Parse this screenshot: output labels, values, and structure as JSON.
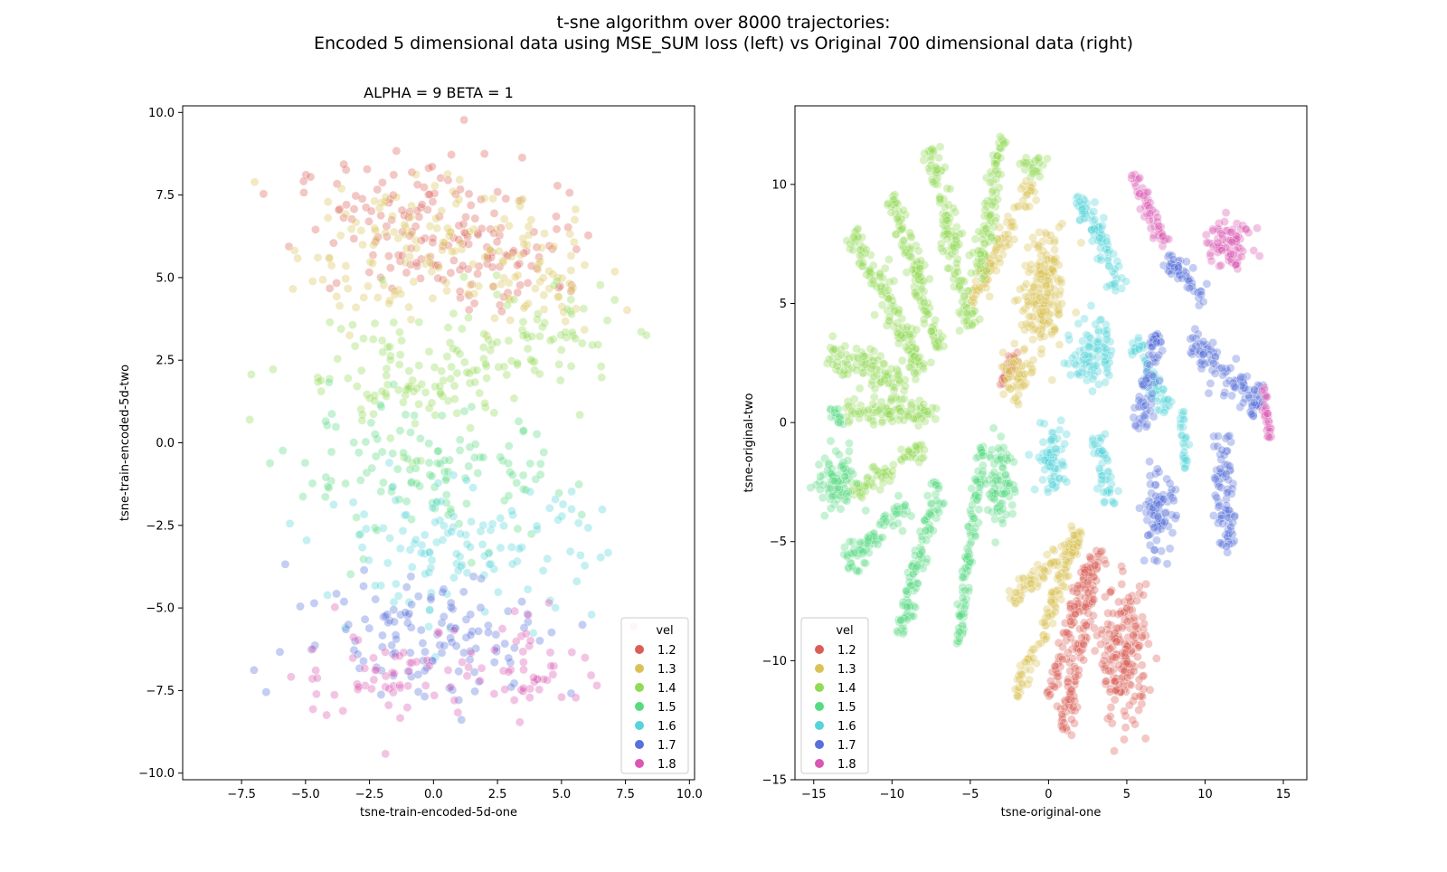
{
  "figure": {
    "title_line1": "t-sne algorithm over 8000 trajectories:",
    "title_line2": "Encoded 5 dimensional data using MSE_SUM loss (left) vs Original 700 dimensional data (right)"
  },
  "colors": {
    "1.2": "#db5f57",
    "1.3": "#dbc257",
    "1.4": "#91db57",
    "1.5": "#57db80",
    "1.6": "#57d3db",
    "1.7": "#5770db",
    "1.8": "#db57b2"
  },
  "chart_data": [
    {
      "type": "scatter",
      "title": "ALPHA = 9  BETA = 1",
      "xlabel": "tsne-train-encoded-5d-one",
      "ylabel": "tsne-train-encoded-5d-two",
      "xlim": [
        -9.8,
        10.2
      ],
      "ylim": [
        -10.2,
        10.2
      ],
      "xticks": [
        -7.5,
        -5.0,
        -2.5,
        0.0,
        2.5,
        5.0,
        7.5,
        10.0
      ],
      "xtick_labels": [
        "−7.5",
        "−5.0",
        "−2.5",
        "0.0",
        "2.5",
        "5.0",
        "7.5",
        "10.0"
      ],
      "yticks": [
        -10.0,
        -7.5,
        -5.0,
        -2.5,
        0.0,
        2.5,
        5.0,
        7.5,
        10.0
      ],
      "ytick_labels": [
        "−10.0",
        "−7.5",
        "−5.0",
        "−2.5",
        "0.0",
        "2.5",
        "5.0",
        "7.5",
        "10.0"
      ],
      "legend": {
        "title": "vel",
        "location": "lower right",
        "entries": [
          "1.2",
          "1.3",
          "1.4",
          "1.5",
          "1.6",
          "1.7",
          "1.8"
        ]
      },
      "series": [
        {
          "name": "1.2",
          "clusters": [
            {
              "center": [
                -1.0,
                6.5
              ],
              "spread": [
                4.0,
                2.0
              ]
            },
            {
              "center": [
                3.0,
                5.8
              ],
              "spread": [
                3.0,
                1.6
              ]
            }
          ]
        },
        {
          "name": "1.3",
          "clusters": [
            {
              "center": [
                -1.0,
                6.0
              ],
              "spread": [
                4.0,
                2.1
              ]
            },
            {
              "center": [
                4.0,
                5.0
              ],
              "spread": [
                2.5,
                1.6
              ]
            }
          ]
        },
        {
          "name": "1.4",
          "clusters": [
            {
              "center": [
                -1.0,
                2.0
              ],
              "spread": [
                4.5,
                1.8
              ]
            },
            {
              "center": [
                4.0,
                3.2
              ],
              "spread": [
                3.0,
                1.5
              ]
            }
          ]
        },
        {
          "name": "1.5",
          "clusters": [
            {
              "center": [
                0.0,
                -1.0
              ],
              "spread": [
                5.0,
                1.8
              ]
            }
          ]
        },
        {
          "name": "1.6",
          "clusters": [
            {
              "center": [
                1.0,
                -3.2
              ],
              "spread": [
                5.0,
                1.8
              ]
            }
          ]
        },
        {
          "name": "1.7",
          "clusters": [
            {
              "center": [
                0.0,
                -5.8
              ],
              "spread": [
                5.0,
                1.8
              ]
            }
          ]
        },
        {
          "name": "1.8",
          "clusters": [
            {
              "center": [
                -2.0,
                -7.0
              ],
              "spread": [
                3.0,
                1.3
              ]
            },
            {
              "center": [
                4.0,
                -6.8
              ],
              "spread": [
                2.8,
                1.3
              ]
            }
          ]
        }
      ]
    },
    {
      "type": "scatter",
      "title": "",
      "xlabel": "tsne-original-one",
      "ylabel": "tsne-original-two",
      "xlim": [
        -16.2,
        16.5
      ],
      "ylim": [
        -15.0,
        13.3
      ],
      "xticks": [
        -15,
        -10,
        -5,
        0,
        5,
        10,
        15
      ],
      "xtick_labels": [
        "−15",
        "−10",
        "−5",
        "0",
        "5",
        "10",
        "15"
      ],
      "yticks": [
        -15,
        -10,
        -5,
        0,
        5,
        10
      ],
      "ytick_labels": [
        "−15",
        "−10",
        "−5",
        "0",
        "5",
        "10"
      ],
      "legend": {
        "title": "vel",
        "location": "lower left",
        "entries": [
          "1.2",
          "1.3",
          "1.4",
          "1.5",
          "1.6",
          "1.7",
          "1.8"
        ]
      },
      "series": [
        {
          "name": "1.2",
          "clusters": [
            {
              "type": "blob",
              "center": [
                4.8,
                -9.8
              ],
              "spread": [
                1.4,
                2.6
              ]
            },
            {
              "type": "arc",
              "from": [
                1.0,
                -13.0
              ],
              "to": [
                3.2,
                -5.2
              ],
              "width": 0.5
            },
            {
              "type": "arc",
              "from": [
                0.0,
                -11.5
              ],
              "to": [
                2.5,
                -6.0
              ],
              "width": 0.4
            },
            {
              "type": "arc",
              "from": [
                -2.0,
                3.0
              ],
              "to": [
                -3.0,
                1.5
              ],
              "width": 0.3
            }
          ]
        },
        {
          "name": "1.3",
          "clusters": [
            {
              "type": "arc",
              "from": [
                -2.0,
                -11.5
              ],
              "to": [
                2.0,
                -4.5
              ],
              "width": 0.4
            },
            {
              "type": "arc",
              "from": [
                -2.5,
                -7.5
              ],
              "to": [
                2.0,
                -4.8
              ],
              "width": 0.4
            },
            {
              "type": "blob",
              "center": [
                -0.5,
                4.5
              ],
              "spread": [
                1.2,
                1.6
              ]
            },
            {
              "type": "blob",
              "center": [
                0.0,
                6.5
              ],
              "spread": [
                1.0,
                1.5
              ]
            },
            {
              "type": "blob",
              "center": [
                -2.0,
                2.0
              ],
              "spread": [
                1.0,
                1.0
              ]
            },
            {
              "type": "arc",
              "from": [
                -5.0,
                5.0
              ],
              "to": [
                -1.0,
                10.0
              ],
              "width": 0.5
            }
          ]
        },
        {
          "name": "1.4",
          "clusters": [
            {
              "type": "arc",
              "from": [
                -14.0,
                3.0
              ],
              "to": [
                -9.0,
                1.5
              ],
              "width": 0.8
            },
            {
              "type": "arc",
              "from": [
                -12.5,
                8.0
              ],
              "to": [
                -8.0,
                2.0
              ],
              "width": 0.7
            },
            {
              "type": "arc",
              "from": [
                -10.0,
                9.5
              ],
              "to": [
                -7.0,
                3.0
              ],
              "width": 0.6
            },
            {
              "type": "arc",
              "from": [
                -7.5,
                11.5
              ],
              "to": [
                -5.0,
                4.0
              ],
              "width": 0.6
            },
            {
              "type": "arc",
              "from": [
                -3.0,
                12.0
              ],
              "to": [
                -4.5,
                6.0
              ],
              "width": 0.5
            },
            {
              "type": "arc",
              "from": [
                -13.0,
                0.5
              ],
              "to": [
                -7.0,
                0.3
              ],
              "width": 0.5
            },
            {
              "type": "arc",
              "from": [
                -12.5,
                -3.0
              ],
              "to": [
                -8.0,
                -1.0
              ],
              "width": 0.4
            },
            {
              "type": "blob",
              "center": [
                -1.0,
                10.8
              ],
              "spread": [
                0.6,
                0.4
              ]
            }
          ]
        },
        {
          "name": "1.5",
          "clusters": [
            {
              "type": "blob",
              "center": [
                -13.5,
                -2.5
              ],
              "spread": [
                1.2,
                1.2
              ]
            },
            {
              "type": "arc",
              "from": [
                -13.0,
                -6.0
              ],
              "to": [
                -9.0,
                -3.5
              ],
              "width": 0.6
            },
            {
              "type": "arc",
              "from": [
                -9.5,
                -9.0
              ],
              "to": [
                -7.0,
                -2.5
              ],
              "width": 0.5
            },
            {
              "type": "arc",
              "from": [
                -5.8,
                -9.5
              ],
              "to": [
                -4.2,
                -1.0
              ],
              "width": 0.3
            },
            {
              "type": "blob",
              "center": [
                -3.0,
                -2.5
              ],
              "spread": [
                0.8,
                1.8
              ]
            },
            {
              "type": "arc",
              "from": [
                -14.0,
                0.5
              ],
              "to": [
                -13.0,
                0.0
              ],
              "width": 0.4
            }
          ]
        },
        {
          "name": "1.6",
          "clusters": [
            {
              "type": "blob",
              "center": [
                2.8,
                3.0
              ],
              "spread": [
                1.2,
                1.4
              ]
            },
            {
              "type": "arc",
              "from": [
                2.0,
                9.8
              ],
              "to": [
                4.5,
                5.5
              ],
              "width": 0.6
            },
            {
              "type": "blob",
              "center": [
                0.2,
                -1.5
              ],
              "spread": [
                0.9,
                1.4
              ]
            },
            {
              "type": "arc",
              "from": [
                3.0,
                -0.5
              ],
              "to": [
                4.0,
                -3.5
              ],
              "width": 0.5
            },
            {
              "type": "arc",
              "from": [
                5.5,
                3.5
              ],
              "to": [
                7.5,
                0.5
              ],
              "width": 0.5
            },
            {
              "type": "arc",
              "from": [
                8.5,
                0.5
              ],
              "to": [
                8.8,
                -2.0
              ],
              "width": 0.2
            }
          ]
        },
        {
          "name": "1.7",
          "clusters": [
            {
              "type": "arc",
              "from": [
                7.0,
                4.0
              ],
              "to": [
                5.8,
                -0.3
              ],
              "width": 0.6
            },
            {
              "type": "arc",
              "from": [
                9.0,
                3.5
              ],
              "to": [
                13.5,
                0.5
              ],
              "width": 0.8
            },
            {
              "type": "blob",
              "center": [
                7.0,
                -3.8
              ],
              "spread": [
                1.0,
                1.5
              ]
            },
            {
              "type": "arc",
              "from": [
                11.0,
                -0.5
              ],
              "to": [
                11.5,
                -5.5
              ],
              "width": 0.6
            },
            {
              "type": "arc",
              "from": [
                7.5,
                7.0
              ],
              "to": [
                10.0,
                5.0
              ],
              "width": 0.5
            }
          ]
        },
        {
          "name": "1.8",
          "clusters": [
            {
              "type": "arc",
              "from": [
                5.3,
                10.5
              ],
              "to": [
                7.5,
                7.5
              ],
              "width": 0.4
            },
            {
              "type": "blob",
              "center": [
                11.5,
                7.5
              ],
              "spread": [
                1.4,
                1.0
              ]
            },
            {
              "type": "arc",
              "from": [
                13.8,
                1.5
              ],
              "to": [
                14.2,
                -0.7
              ],
              "width": 0.3
            }
          ]
        }
      ]
    }
  ]
}
